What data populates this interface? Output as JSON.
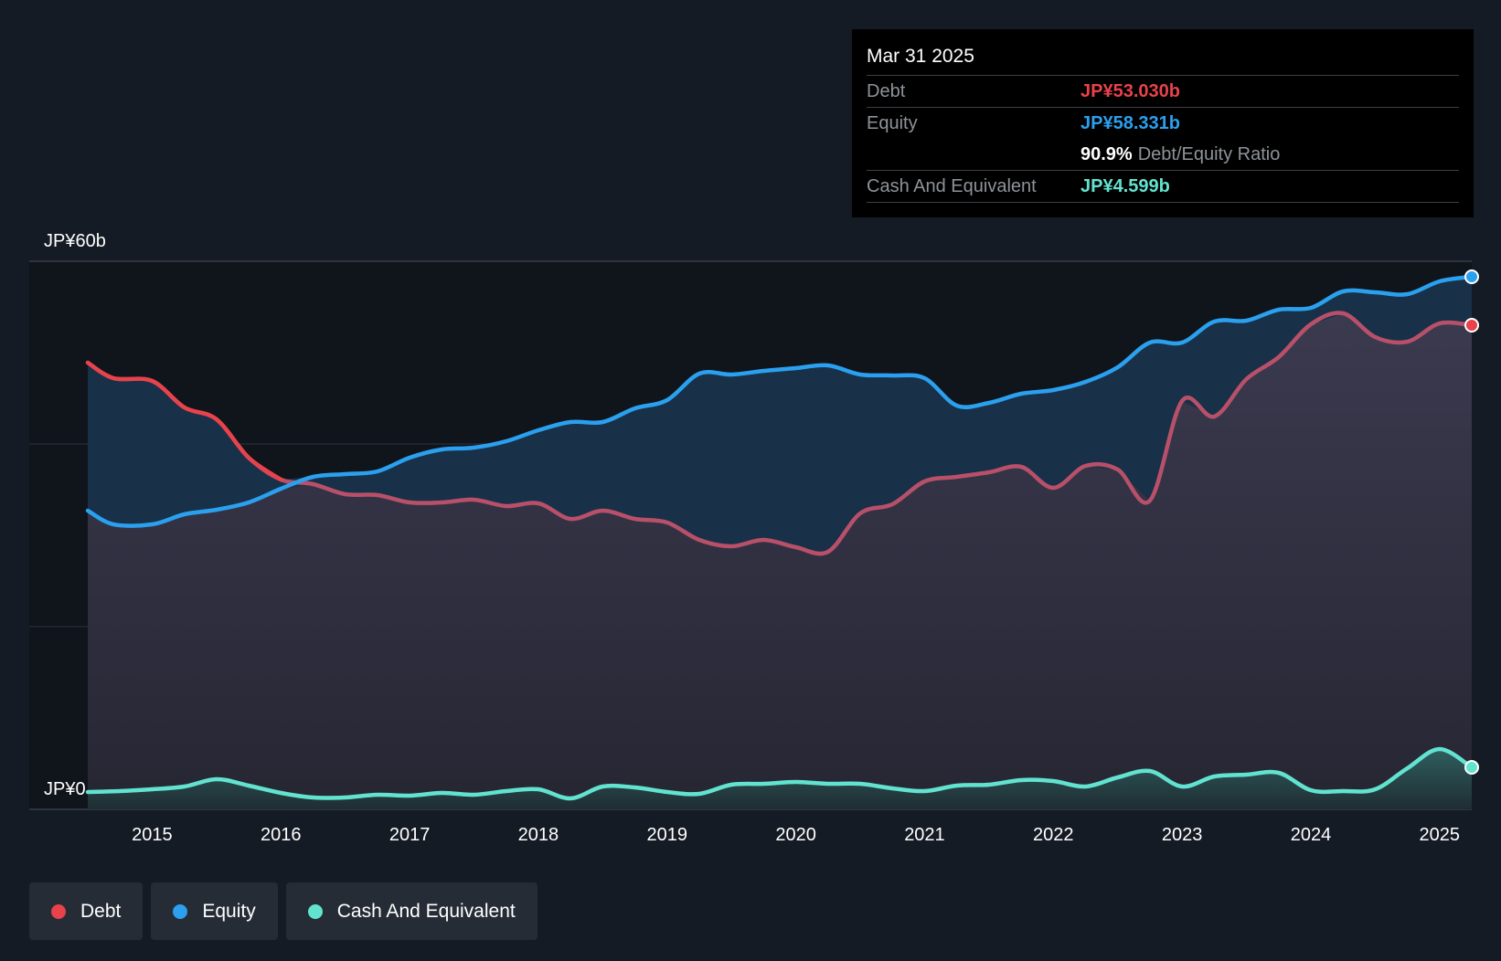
{
  "tooltip": {
    "date": "Mar 31 2025",
    "debt_label": "Debt",
    "debt_value": "JP¥53.030b",
    "equity_label": "Equity",
    "equity_value": "JP¥58.331b",
    "ratio_value": "90.9%",
    "ratio_label": "Debt/Equity Ratio",
    "cash_label": "Cash And Equivalent",
    "cash_value": "JP¥4.599b"
  },
  "legend": [
    {
      "label": "Debt",
      "color": "#e8424b"
    },
    {
      "label": "Equity",
      "color": "#2aa0ef"
    },
    {
      "label": "Cash And Equivalent",
      "color": "#62e3d0"
    }
  ],
  "chart_data": {
    "type": "area",
    "title": "",
    "xlabel": "",
    "ylabel": "",
    "ylim": [
      0,
      60
    ],
    "y_tick_labels": [
      {
        "value": 60,
        "label": "JP¥60b"
      },
      {
        "value": 0,
        "label": "JP¥0"
      }
    ],
    "gridlines": [
      60,
      40,
      20,
      0
    ],
    "x_ticks": [
      2015,
      2016,
      2017,
      2018,
      2019,
      2020,
      2021,
      2022,
      2023,
      2024,
      2025
    ],
    "colors": {
      "debt": "#e8424b",
      "equity": "#2aa0ef",
      "cash": "#62e3d0"
    },
    "series": [
      {
        "name": "Debt",
        "key": "debt",
        "points": [
          [
            2014.5,
            48.9
          ],
          [
            2014.7,
            47.2
          ],
          [
            2015.0,
            46.9
          ],
          [
            2015.25,
            44.0
          ],
          [
            2015.5,
            42.7
          ],
          [
            2015.75,
            38.5
          ],
          [
            2016.0,
            36.1
          ],
          [
            2016.25,
            35.6
          ],
          [
            2016.5,
            34.5
          ],
          [
            2016.75,
            34.4
          ],
          [
            2017.0,
            33.6
          ],
          [
            2017.25,
            33.6
          ],
          [
            2017.5,
            33.9
          ],
          [
            2017.75,
            33.2
          ],
          [
            2018.0,
            33.5
          ],
          [
            2018.25,
            31.8
          ],
          [
            2018.5,
            32.7
          ],
          [
            2018.75,
            31.8
          ],
          [
            2019.0,
            31.4
          ],
          [
            2019.25,
            29.5
          ],
          [
            2019.5,
            28.8
          ],
          [
            2019.75,
            29.5
          ],
          [
            2020.0,
            28.7
          ],
          [
            2020.25,
            28.2
          ],
          [
            2020.5,
            32.4
          ],
          [
            2020.75,
            33.4
          ],
          [
            2021.0,
            35.9
          ],
          [
            2021.25,
            36.4
          ],
          [
            2021.5,
            36.9
          ],
          [
            2021.75,
            37.5
          ],
          [
            2022.0,
            35.2
          ],
          [
            2022.25,
            37.6
          ],
          [
            2022.5,
            37.2
          ],
          [
            2022.75,
            33.8
          ],
          [
            2023.0,
            44.7
          ],
          [
            2023.25,
            43.0
          ],
          [
            2023.5,
            47.1
          ],
          [
            2023.75,
            49.5
          ],
          [
            2024.0,
            53.1
          ],
          [
            2024.25,
            54.3
          ],
          [
            2024.5,
            51.7
          ],
          [
            2024.75,
            51.2
          ],
          [
            2025.0,
            53.2
          ],
          [
            2025.25,
            53.0
          ]
        ]
      },
      {
        "name": "Equity",
        "key": "equity",
        "points": [
          [
            2014.5,
            32.7
          ],
          [
            2014.7,
            31.2
          ],
          [
            2015.0,
            31.2
          ],
          [
            2015.25,
            32.3
          ],
          [
            2015.5,
            32.8
          ],
          [
            2015.75,
            33.6
          ],
          [
            2016.0,
            35.1
          ],
          [
            2016.25,
            36.4
          ],
          [
            2016.5,
            36.7
          ],
          [
            2016.75,
            37.0
          ],
          [
            2017.0,
            38.5
          ],
          [
            2017.25,
            39.4
          ],
          [
            2017.5,
            39.6
          ],
          [
            2017.75,
            40.3
          ],
          [
            2018.0,
            41.5
          ],
          [
            2018.25,
            42.4
          ],
          [
            2018.5,
            42.4
          ],
          [
            2018.75,
            43.9
          ],
          [
            2019.0,
            44.8
          ],
          [
            2019.25,
            47.7
          ],
          [
            2019.5,
            47.6
          ],
          [
            2019.75,
            48.0
          ],
          [
            2020.0,
            48.3
          ],
          [
            2020.25,
            48.6
          ],
          [
            2020.5,
            47.6
          ],
          [
            2020.75,
            47.5
          ],
          [
            2021.0,
            47.2
          ],
          [
            2021.25,
            44.2
          ],
          [
            2021.5,
            44.5
          ],
          [
            2021.75,
            45.5
          ],
          [
            2022.0,
            45.9
          ],
          [
            2022.25,
            46.8
          ],
          [
            2022.5,
            48.4
          ],
          [
            2022.75,
            51.1
          ],
          [
            2023.0,
            51.1
          ],
          [
            2023.25,
            53.4
          ],
          [
            2023.5,
            53.5
          ],
          [
            2023.75,
            54.7
          ],
          [
            2024.0,
            54.9
          ],
          [
            2024.25,
            56.7
          ],
          [
            2024.5,
            56.6
          ],
          [
            2024.75,
            56.4
          ],
          [
            2025.0,
            57.8
          ],
          [
            2025.25,
            58.3
          ]
        ]
      },
      {
        "name": "Cash And Equivalent",
        "key": "cash",
        "points": [
          [
            2014.5,
            1.9
          ],
          [
            2014.75,
            2.0
          ],
          [
            2015.0,
            2.2
          ],
          [
            2015.25,
            2.5
          ],
          [
            2015.5,
            3.3
          ],
          [
            2015.75,
            2.6
          ],
          [
            2016.0,
            1.8
          ],
          [
            2016.25,
            1.3
          ],
          [
            2016.5,
            1.3
          ],
          [
            2016.75,
            1.6
          ],
          [
            2017.0,
            1.5
          ],
          [
            2017.25,
            1.8
          ],
          [
            2017.5,
            1.6
          ],
          [
            2017.75,
            2.0
          ],
          [
            2018.0,
            2.2
          ],
          [
            2018.25,
            1.2
          ],
          [
            2018.5,
            2.5
          ],
          [
            2018.75,
            2.4
          ],
          [
            2019.0,
            1.9
          ],
          [
            2019.25,
            1.7
          ],
          [
            2019.5,
            2.7
          ],
          [
            2019.75,
            2.8
          ],
          [
            2020.0,
            3.0
          ],
          [
            2020.25,
            2.8
          ],
          [
            2020.5,
            2.8
          ],
          [
            2020.75,
            2.3
          ],
          [
            2021.0,
            2.0
          ],
          [
            2021.25,
            2.6
          ],
          [
            2021.5,
            2.7
          ],
          [
            2021.75,
            3.2
          ],
          [
            2022.0,
            3.1
          ],
          [
            2022.25,
            2.5
          ],
          [
            2022.5,
            3.5
          ],
          [
            2022.75,
            4.2
          ],
          [
            2023.0,
            2.5
          ],
          [
            2023.25,
            3.6
          ],
          [
            2023.5,
            3.8
          ],
          [
            2023.75,
            4.0
          ],
          [
            2024.0,
            2.1
          ],
          [
            2024.25,
            2.0
          ],
          [
            2024.5,
            2.2
          ],
          [
            2024.75,
            4.5
          ],
          [
            2025.0,
            6.6
          ],
          [
            2025.25,
            4.6
          ]
        ]
      }
    ]
  }
}
